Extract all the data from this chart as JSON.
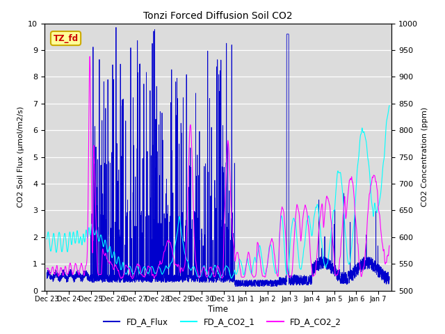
{
  "title": "Tonzi Forced Diffusion Soil CO2",
  "xlabel": "Time",
  "ylabel_left": "CO2 Soil Flux (μmol/m2/s)",
  "ylabel_right": "CO2 Concentration (ppm)",
  "ylim_left": [
    0.0,
    10.0
  ],
  "ylim_right": [
    500,
    1000
  ],
  "xtick_labels": [
    "Dec 23",
    "Dec 24",
    "Dec 25",
    "Dec 26",
    "Dec 27",
    "Dec 28",
    "Dec 29",
    "Dec 30",
    "Dec 31",
    "Jan 1",
    "Jan 2",
    "Jan 3",
    "Jan 4",
    "Jan 5",
    "Jan 6",
    "Jan 7"
  ],
  "legend_entries": [
    "FD_A_Flux",
    "FD_A_CO2_1",
    "FD_A_CO2_2"
  ],
  "colors": {
    "FD_A_Flux": "#0000CD",
    "FD_A_CO2_1": "#00FFFF",
    "FD_A_CO2_2": "#FF00FF"
  },
  "tag_text": "TZ_fd",
  "tag_facecolor": "#FFFF99",
  "tag_edgecolor": "#CCAA00",
  "tag_textcolor": "#CC0000",
  "background_color": "#DCDCDC",
  "grid_color": "#FFFFFF",
  "fig_facecolor": "#FFFFFF",
  "n_points": 3000,
  "start_day": 0,
  "end_day": 15.5
}
